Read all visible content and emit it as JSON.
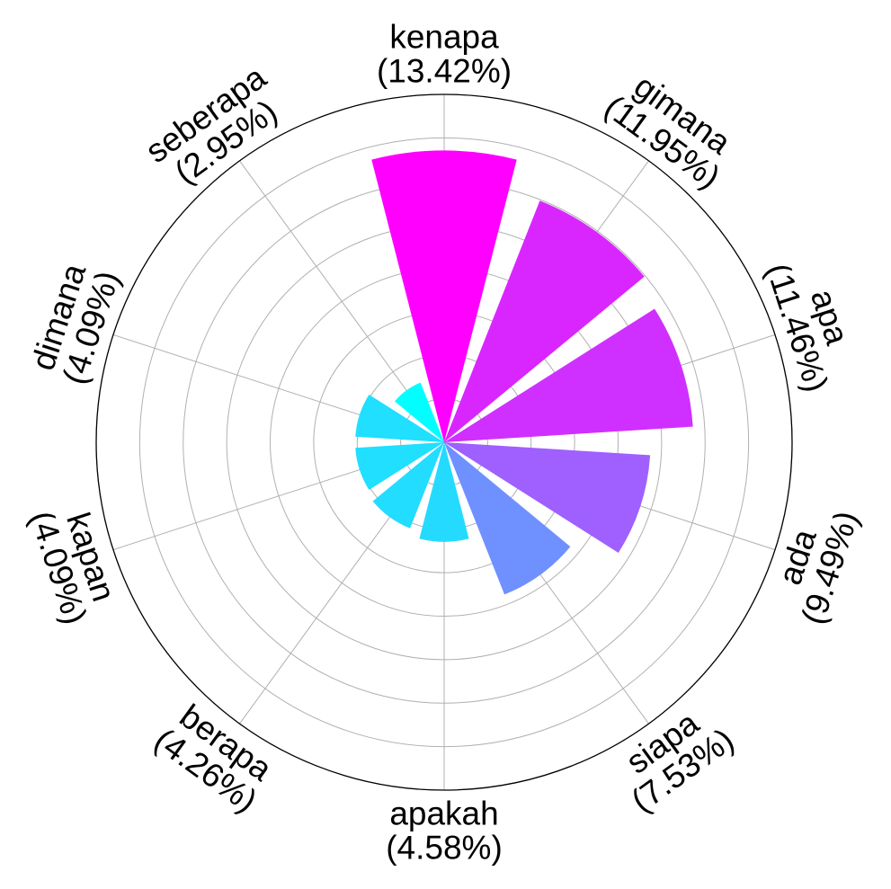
{
  "chart_data": {
    "type": "polar-bar",
    "title": "",
    "categories": [
      "kenapa",
      "gimana",
      "apa",
      "ada",
      "siapa",
      "apakah",
      "berapa",
      "kapan",
      "dimana",
      "seberapa"
    ],
    "percent_labels": [
      "(13.42%)",
      "(11.95%)",
      "(11.46%)",
      "(9.49%)",
      "(7.53%)",
      "(4.58%)",
      "(4.26%)",
      "(4.09%)",
      "(4.09%)",
      "(2.95%)"
    ],
    "values": [
      13.42,
      11.95,
      11.46,
      9.49,
      7.53,
      4.58,
      4.26,
      4.09,
      4.09,
      2.95
    ],
    "bar_sectors_clockwise_from_top": [
      "kenapa",
      "gimana",
      "apa",
      "ada",
      "siapa",
      "apakah",
      "berapa",
      "kapan",
      "dimana",
      "seberapa"
    ],
    "colors": [
      "#ff00ff",
      "#d926ff",
      "#cf30ff",
      "#9f60ff",
      "#6f90ff",
      "#24dbff",
      "#22ddff",
      "#20dfff",
      "#20dfff",
      "#00ffff"
    ],
    "radial_range": [
      0,
      16
    ],
    "radial_gridlines": 8,
    "radial_tick_labels_shown": false,
    "grid": true,
    "legend": "none"
  }
}
